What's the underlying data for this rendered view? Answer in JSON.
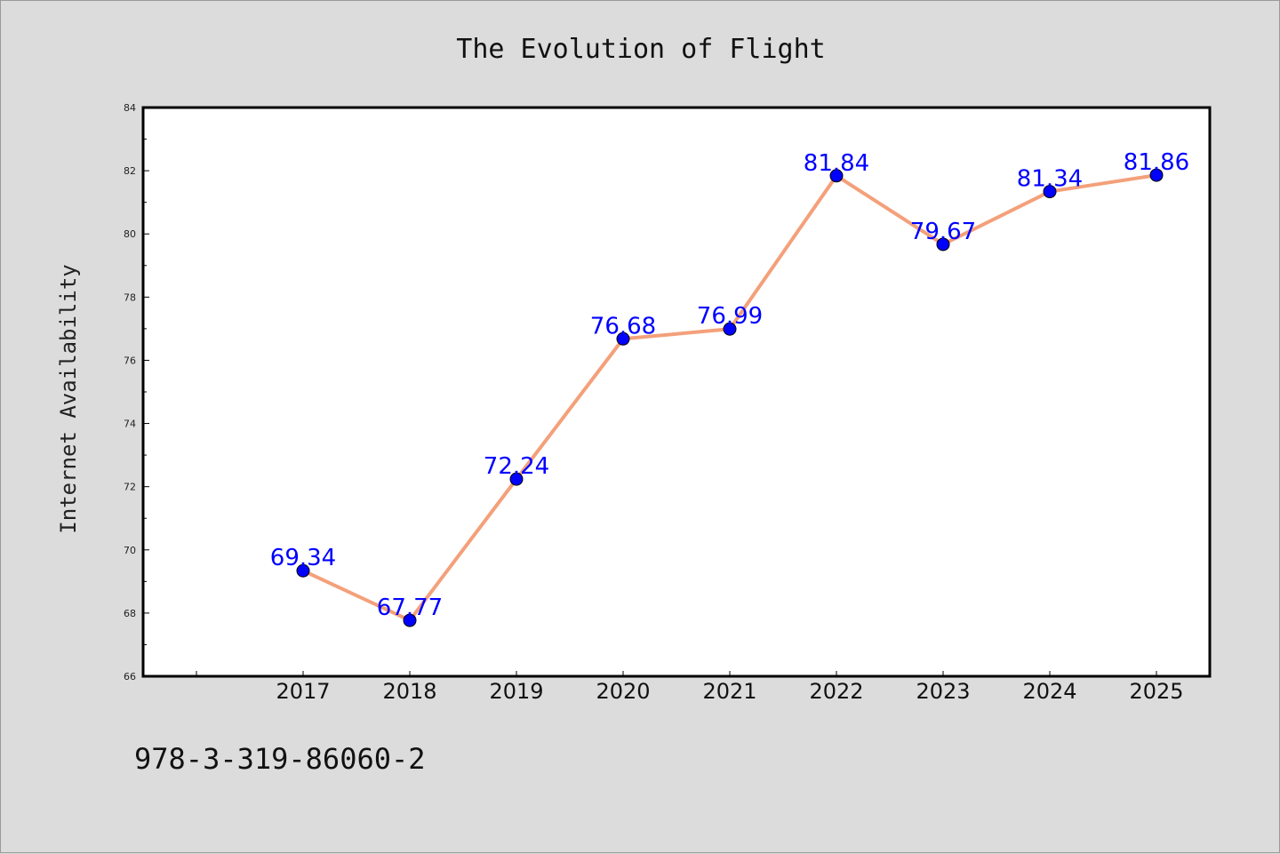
{
  "chart_data": {
    "type": "line",
    "title": "The Evolution of Flight",
    "xlabel": "",
    "ylabel": "Internet Availability",
    "categories": [
      "2017",
      "2018",
      "2019",
      "2020",
      "2021",
      "2022",
      "2023",
      "2024",
      "2025"
    ],
    "series": [
      {
        "values": [
          69.34,
          67.77,
          72.24,
          76.68,
          76.99,
          81.84,
          79.67,
          81.34,
          81.86
        ],
        "line_color": "#f4a07a",
        "marker_color": "#0000ff"
      }
    ],
    "data_labels": [
      "69.34",
      "67.77",
      "72.24",
      "76.68",
      "76.99",
      "81.84",
      "79.67",
      "81.34",
      "81.86"
    ],
    "data_label_color": "#0000ff",
    "ylim": [
      66,
      84
    ],
    "yticks": [
      66,
      68,
      70,
      72,
      74,
      76,
      78,
      80,
      82,
      84
    ],
    "grid": false
  },
  "footer": {
    "text": "978-3-319-86060-2"
  }
}
